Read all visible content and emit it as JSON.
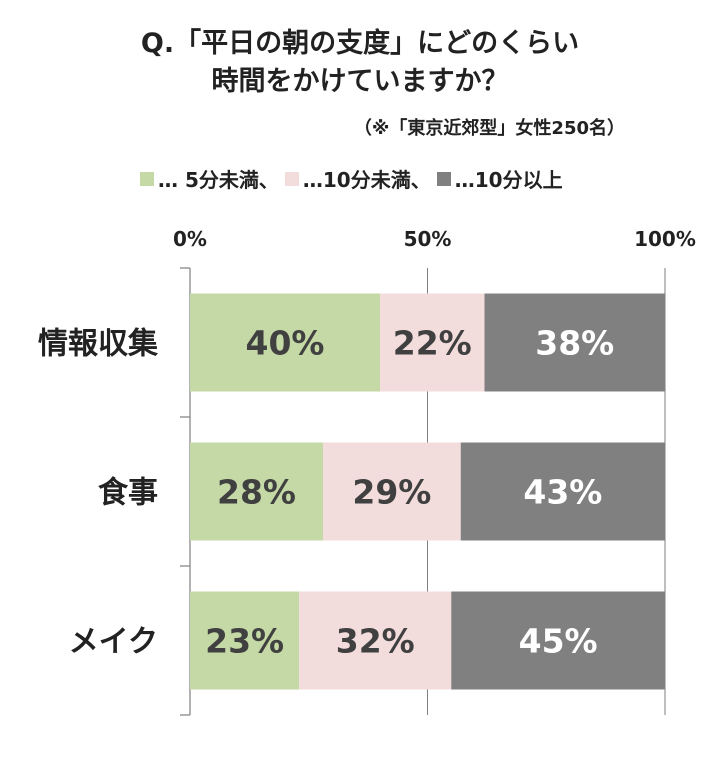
{
  "title_line1": "Q.「平日の朝の支度」にどのくらい",
  "title_line2": "時間をかけていますか？",
  "subtitle": "（※「東京近郊型」女性250名）",
  "colors": {
    "lt5": "#c5d9a6",
    "lt10": "#f2dcdc",
    "ge10": "#808080"
  },
  "chart_data": {
    "type": "bar",
    "orientation": "horizontal",
    "stacked": true,
    "percent": true,
    "categories": [
      "情報収集",
      "食事",
      "メイク"
    ],
    "series": [
      {
        "name": "… 5分未満、",
        "values": [
          40,
          28,
          23
        ],
        "color": "#c5d9a6"
      },
      {
        "name": "…10分未満、",
        "values": [
          22,
          29,
          32
        ],
        "color": "#f2dcdc"
      },
      {
        "name": "…10分以上",
        "values": [
          38,
          43,
          45
        ],
        "color": "#808080"
      }
    ],
    "xlim": [
      0,
      100
    ],
    "x_ticks": [
      "0%",
      "50%",
      "100%"
    ],
    "legend_position": "top",
    "grid": "vertical"
  }
}
